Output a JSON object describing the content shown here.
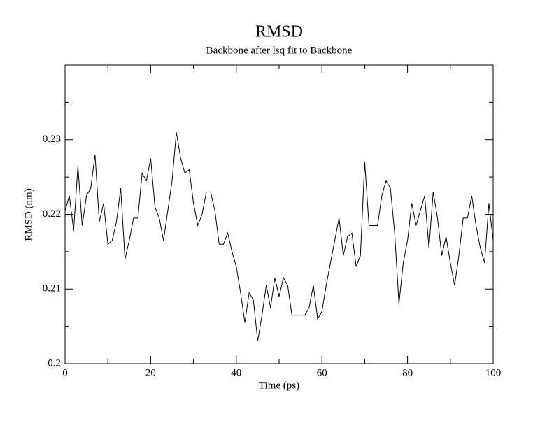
{
  "chart_data": {
    "type": "line",
    "title": "RMSD",
    "subtitle": "Backbone after lsq fit to Backbone",
    "x_label": "Time (ps)",
    "y_label": "RMSD (nm)",
    "x": [
      0,
      1,
      2,
      3,
      4,
      5,
      6,
      7,
      8,
      9,
      10,
      11,
      12,
      13,
      14,
      15,
      16,
      17,
      18,
      19,
      20,
      21,
      22,
      23,
      24,
      25,
      26,
      27,
      28,
      29,
      30,
      31,
      32,
      33,
      34,
      35,
      36,
      37,
      38,
      39,
      40,
      41,
      42,
      43,
      44,
      45,
      46,
      47,
      48,
      49,
      50,
      51,
      52,
      53,
      54,
      55,
      56,
      57,
      58,
      59,
      60,
      61,
      62,
      63,
      64,
      65,
      66,
      67,
      68,
      69,
      70,
      71,
      72,
      73,
      74,
      75,
      76,
      77,
      78,
      79,
      80,
      81,
      82,
      83,
      84,
      85,
      86,
      87,
      88,
      89,
      90,
      91,
      92,
      93,
      94,
      95,
      96,
      97,
      98,
      99,
      100
    ],
    "series": [
      {
        "color": "#000000",
        "values": [
          0.2205,
          0.2225,
          0.2178,
          0.2265,
          0.2185,
          0.2225,
          0.2235,
          0.228,
          0.219,
          0.2215,
          0.216,
          0.2165,
          0.219,
          0.2235,
          0.214,
          0.2165,
          0.2195,
          0.2195,
          0.2255,
          0.2245,
          0.2275,
          0.221,
          0.2195,
          0.2165,
          0.2205,
          0.2245,
          0.231,
          0.2275,
          0.2255,
          0.226,
          0.2215,
          0.2185,
          0.22,
          0.223,
          0.223,
          0.2205,
          0.216,
          0.216,
          0.2175,
          0.215,
          0.213,
          0.2095,
          0.2055,
          0.2095,
          0.2085,
          0.203,
          0.2065,
          0.2105,
          0.2075,
          0.2115,
          0.209,
          0.2115,
          0.2105,
          0.2065,
          0.2065,
          0.2065,
          0.2065,
          0.2075,
          0.2105,
          0.206,
          0.207,
          0.2105,
          0.2135,
          0.2165,
          0.2195,
          0.2145,
          0.217,
          0.2175,
          0.213,
          0.2145,
          0.227,
          0.2185,
          0.2185,
          0.2185,
          0.2225,
          0.2245,
          0.2235,
          0.2175,
          0.208,
          0.2135,
          0.2165,
          0.2215,
          0.2185,
          0.2205,
          0.2225,
          0.2155,
          0.223,
          0.2195,
          0.2145,
          0.217,
          0.2135,
          0.2105,
          0.2145,
          0.2195,
          0.2195,
          0.2225,
          0.2185,
          0.2155,
          0.2135,
          0.2215,
          0.2165
        ]
      }
    ],
    "xlim": [
      0,
      100
    ],
    "xticks": [
      0,
      20,
      40,
      60,
      80,
      100
    ],
    "xminorticks": [
      10,
      30,
      50,
      70,
      90
    ],
    "ylim": [
      0.2,
      0.24
    ],
    "yticks": [
      0.2,
      0.21,
      0.22,
      0.23
    ],
    "yminorticks": [
      0.205,
      0.215,
      0.225,
      0.235
    ]
  }
}
